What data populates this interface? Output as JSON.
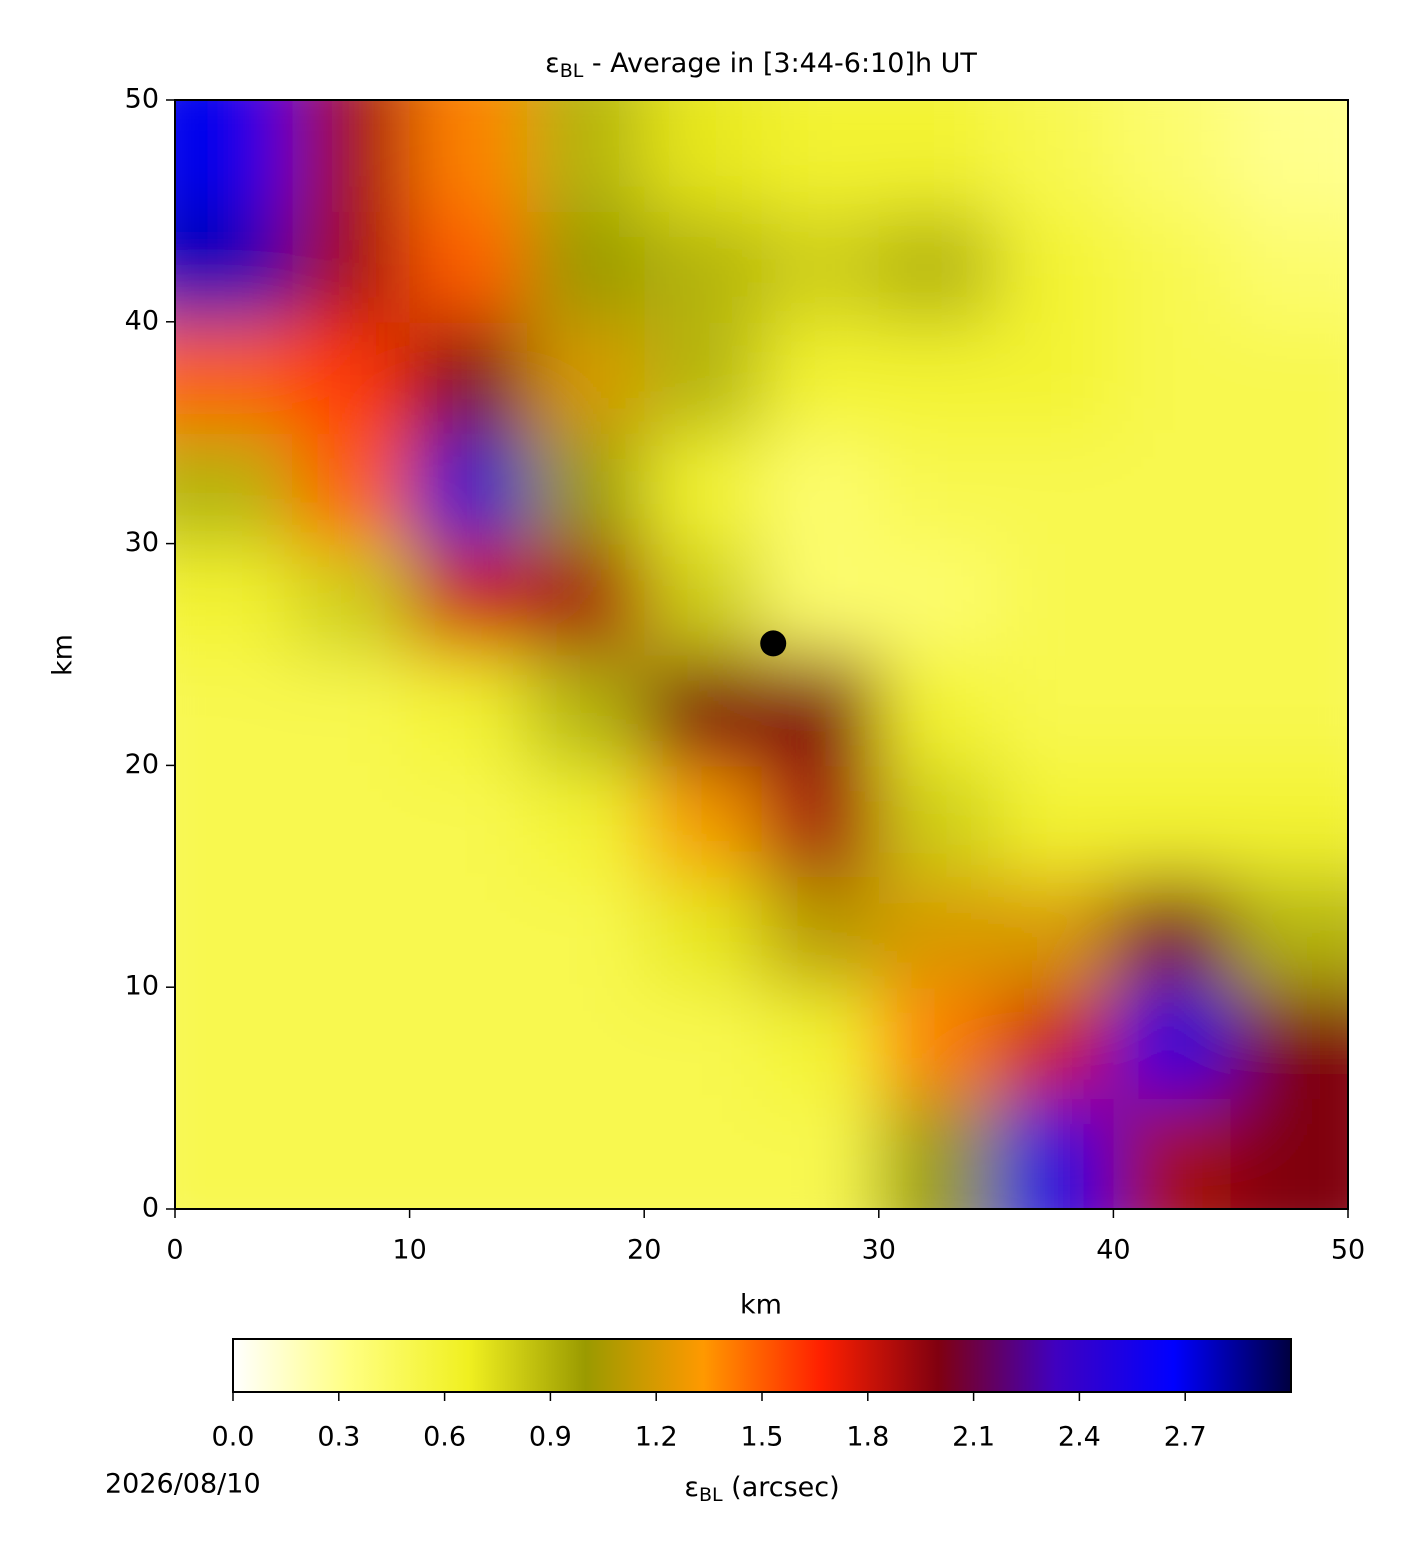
{
  "chart_data": {
    "type": "heatmap",
    "title": {
      "symbol": "ε",
      "subscript": "BL",
      "rest": " - Average in [3:44-6:10]h UT"
    },
    "x_label": "km",
    "y_label": "km",
    "x": [
      2.5,
      7.5,
      12.5,
      17.5,
      22.5,
      27.5,
      32.5,
      37.5,
      42.5,
      47.5
    ],
    "y": [
      2.5,
      7.5,
      12.5,
      17.5,
      22.5,
      27.5,
      32.5,
      37.5,
      42.5,
      47.5
    ],
    "z": [
      [
        0.5,
        0.5,
        0.5,
        0.5,
        0.5,
        0.5,
        1.0,
        2.5,
        1.9,
        2.0
      ],
      [
        0.5,
        0.5,
        0.5,
        0.5,
        0.5,
        0.6,
        1.4,
        1.8,
        2.5,
        2.0
      ],
      [
        0.5,
        0.5,
        0.5,
        0.5,
        0.7,
        1.1,
        1.2,
        1.2,
        2.0,
        0.9
      ],
      [
        0.5,
        0.5,
        0.5,
        0.6,
        1.3,
        1.9,
        0.8,
        0.6,
        0.6,
        0.6
      ],
      [
        0.5,
        0.5,
        0.6,
        0.9,
        2.0,
        2.0,
        0.6,
        0.5,
        0.5,
        0.5
      ],
      [
        0.6,
        0.8,
        1.8,
        1.9,
        0.8,
        0.4,
        0.4,
        0.5,
        0.5,
        0.5
      ],
      [
        0.9,
        1.5,
        2.4,
        1.0,
        0.6,
        0.4,
        0.5,
        0.5,
        0.5,
        0.5
      ],
      [
        1.5,
        1.6,
        2.0,
        1.2,
        0.9,
        0.6,
        0.6,
        0.6,
        0.5,
        0.5
      ],
      [
        2.8,
        1.9,
        1.5,
        1.0,
        0.9,
        0.8,
        0.9,
        0.6,
        0.5,
        0.4
      ],
      [
        2.7,
        1.9,
        1.4,
        0.9,
        0.7,
        0.6,
        0.6,
        0.5,
        0.4,
        0.3
      ]
    ],
    "xlim": [
      0,
      50
    ],
    "xticks": [
      0,
      10,
      20,
      30,
      40,
      50
    ],
    "ylim": [
      0,
      50
    ],
    "yticks": [
      0,
      10,
      20,
      30,
      40,
      50
    ],
    "marker": {
      "x": 25.5,
      "y": 25.5,
      "color": "#000000"
    },
    "colormap": [
      "#ffffff",
      "#ffff80",
      "#f0f020",
      "#9a9a00",
      "#ff9900",
      "#ff2000",
      "#800010",
      "#4000c0",
      "#0000ff",
      "#000040"
    ],
    "clim": [
      0,
      3
    ],
    "colorbar_ticks": [
      {
        "value": 0,
        "label": "0.0"
      },
      0.3,
      0.6,
      0.9,
      1.2,
      1.5,
      1.8,
      2.1,
      2.4,
      2.7
    ],
    "colorbar_label": {
      "symbol": "ε",
      "subscript": "BL",
      "rest": " (arcsec)"
    },
    "date": "2026/08/10"
  }
}
